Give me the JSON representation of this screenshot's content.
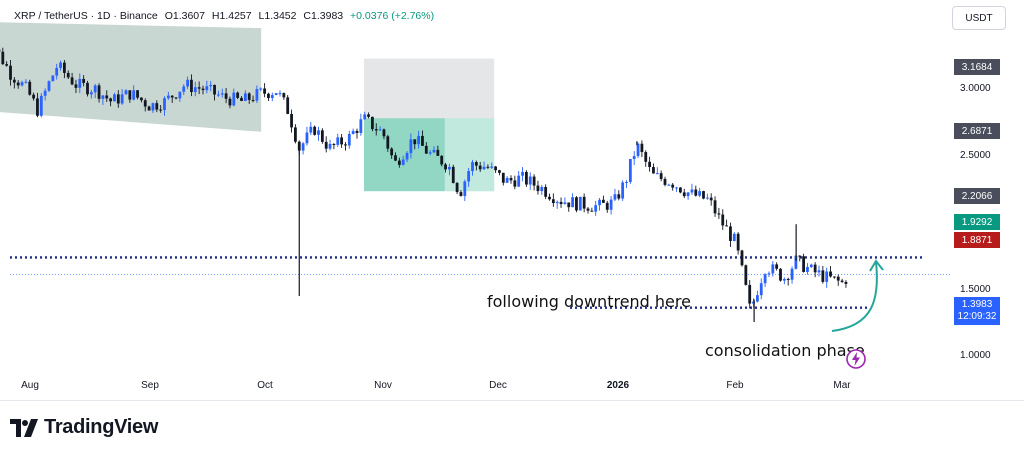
{
  "header": {
    "symbol": "XRP / TetherUS · 1D · Binance",
    "open": "O1.3607",
    "high": "H1.4257",
    "low": "L1.3452",
    "close": "C1.3983",
    "change": "+0.0376 (+2.76%)"
  },
  "currency": "USDT",
  "price_tags": [
    {
      "label": "3.1684",
      "bg": "#4a4e5c"
    },
    {
      "label": "2.6871",
      "bg": "#4a4e5c"
    },
    {
      "label": "2.2066",
      "bg": "#4a4e5c"
    },
    {
      "label": "1.9292",
      "bg": "#089981"
    },
    {
      "label": "1.8871",
      "bg": "#b71c1c"
    }
  ],
  "last_price": {
    "value": "1.3983",
    "countdown": "12:09:32",
    "bg": "#2962ff"
  },
  "annotations": {
    "downtrend": "following downtrend here",
    "consolidation": "consolidation phase"
  },
  "brand": "TradingView",
  "colors": {
    "up": "#2962ff",
    "down": "#131722",
    "zone_gray": "#b7c9c3",
    "zone_green": "#7ed0b8",
    "arrow": "#26a69a"
  },
  "chart_data": {
    "type": "candlestick",
    "y_scale": "log",
    "ylim": [
      0.92,
      4.0
    ],
    "y_ticks": [
      "3.0000",
      "2.5000",
      "1.5000",
      "1.0000"
    ],
    "x_labels": [
      "Aug",
      "Sep",
      "Oct",
      "Nov",
      "Dec",
      "2026",
      "Feb",
      "Mar"
    ],
    "close_path": [
      [
        "Jul 20",
        3.25
      ],
      [
        "Jul 23",
        3.55
      ],
      [
        "Jul 27",
        3.2
      ],
      [
        "Jul 31",
        3.0
      ],
      [
        "Aug 3",
        2.75
      ],
      [
        "Aug 8",
        3.3
      ],
      [
        "Aug 13",
        3.05
      ],
      [
        "Aug 18",
        3.0
      ],
      [
        "Aug 22",
        2.85
      ],
      [
        "Aug 27",
        2.95
      ],
      [
        "Sep 1",
        2.8
      ],
      [
        "Sep 5",
        2.85
      ],
      [
        "Sep 10",
        3.05
      ],
      [
        "Sep 15",
        3.0
      ],
      [
        "Sep 20",
        2.9
      ],
      [
        "Sep 25",
        2.85
      ],
      [
        "Sep 30",
        2.95
      ],
      [
        "Oct 4",
        2.98
      ],
      [
        "Oct 7",
        2.75
      ],
      [
        "Oct 10",
        2.35
      ],
      [
        "Oct 14",
        2.55
      ],
      [
        "Oct 18",
        2.35
      ],
      [
        "Oct 23",
        2.45
      ],
      [
        "Oct 27",
        2.65
      ],
      [
        "Nov 1",
        2.5
      ],
      [
        "Nov 4",
        2.2
      ],
      [
        "Nov 9",
        2.45
      ],
      [
        "Nov 13",
        2.3
      ],
      [
        "Nov 18",
        2.2
      ],
      [
        "Nov 21",
        1.95
      ],
      [
        "Nov 24",
        2.2
      ],
      [
        "Nov 28",
        2.18
      ],
      [
        "Dec 3",
        2.05
      ],
      [
        "Dec 7",
        2.08
      ],
      [
        "Dec 12",
        2.0
      ],
      [
        "Dec 17",
        1.9
      ],
      [
        "Dec 22",
        1.87
      ],
      [
        "Dec 27",
        1.85
      ],
      [
        "Dec 31",
        1.88
      ],
      [
        "Jan 3",
        2.05
      ],
      [
        "Jan 6",
        2.38
      ],
      [
        "Jan 10",
        2.1
      ],
      [
        "Jan 15",
        2.05
      ],
      [
        "Jan 20",
        1.95
      ],
      [
        "Jan 25",
        1.9
      ],
      [
        "Jan 28",
        1.75
      ],
      [
        "Feb 1",
        1.6
      ],
      [
        "Feb 5",
        1.2
      ],
      [
        "Feb 9",
        1.45
      ],
      [
        "Feb 14",
        1.38
      ],
      [
        "Feb 17",
        1.48
      ],
      [
        "Feb 21",
        1.42
      ],
      [
        "Feb 25",
        1.38
      ],
      [
        "Mar 1",
        1.35
      ],
      [
        "Mar 3",
        1.3983
      ]
    ],
    "wicks": [
      {
        "date": "Oct 10",
        "low": 1.28
      },
      {
        "date": "Feb 6",
        "low": 1.15
      },
      {
        "date": "Feb 17",
        "high": 1.72
      },
      {
        "date": "Jan 6",
        "high": 2.42
      }
    ],
    "levels": [
      {
        "name": "resistance",
        "value": 1.5,
        "style": "dotted"
      },
      {
        "name": "support",
        "value": 1.22,
        "style": "dotted"
      }
    ],
    "zones": [
      {
        "from": "Jul 23",
        "to": "Sep 30",
        "top": 3.95,
        "bottom": 2.6,
        "color": "gray"
      },
      {
        "from": "Oct 27",
        "to": "Nov 30",
        "top": 3.4,
        "bottom": 2.66,
        "color": "light-gray"
      },
      {
        "from": "Oct 27",
        "to": "Nov 30",
        "top": 2.66,
        "bottom": 1.97,
        "color": "green"
      }
    ]
  }
}
